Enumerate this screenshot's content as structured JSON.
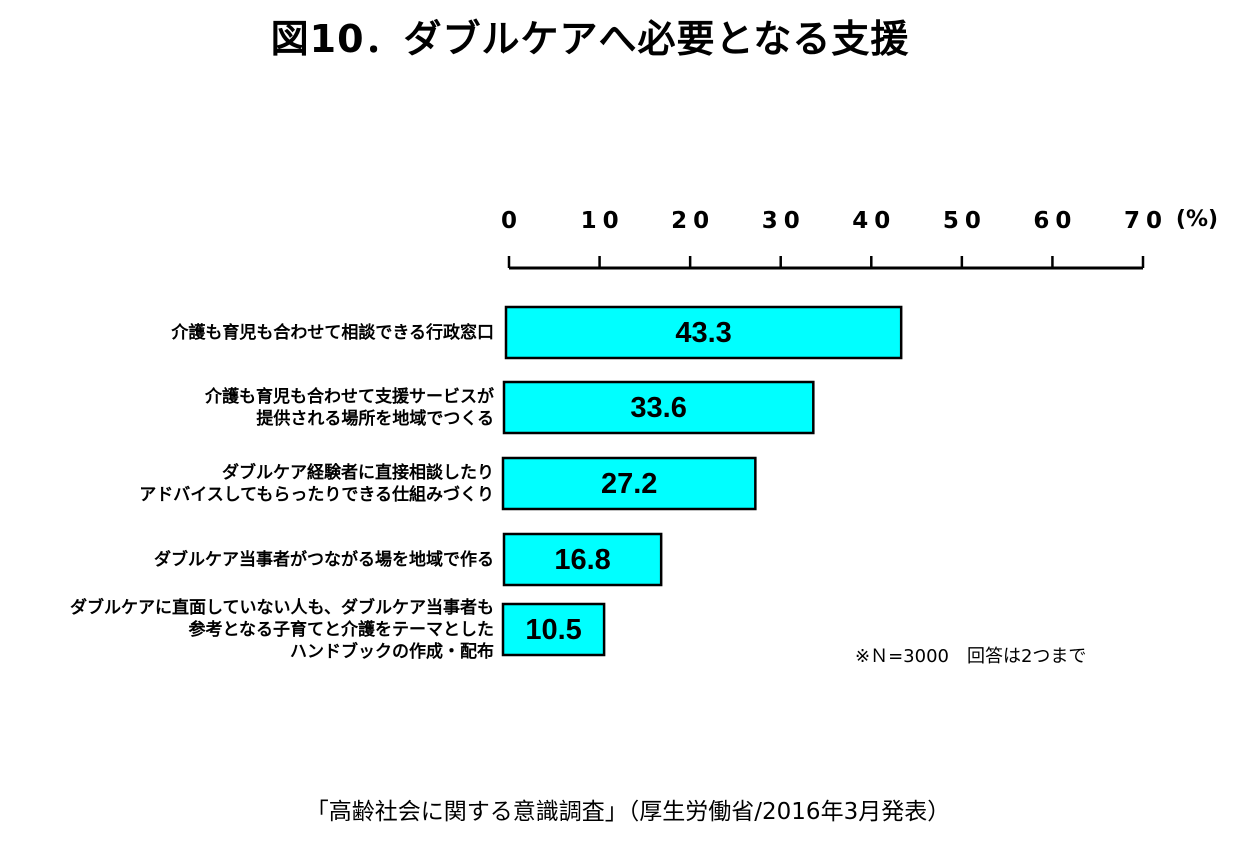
{
  "title": "図10．ダブルケアへ必要となる支援",
  "chart_data": {
    "type": "bar",
    "orientation": "horizontal",
    "xlim": [
      0,
      70
    ],
    "ticks": [
      "0",
      "10",
      "20",
      "30",
      "40",
      "50",
      "60",
      "70"
    ],
    "unit": "(%)",
    "categories": [
      "介護も育児も合わせて相談できる行政窓口",
      "介護も育児も合わせて支援サービスが\n提供される場所を地域でつくる",
      "ダブルケア経験者に直接相談したり\nアドバイスしてもらったりできる仕組みづくり",
      "ダブルケア当事者がつながる場を地域で作る",
      "ダブルケアに直面していない人も、ダブルケア当事者も\n参考となる子育てと介護をテーマとした\nハンドブックの作成・配布"
    ],
    "values": [
      43.3,
      33.6,
      27.2,
      16.8,
      10.5
    ],
    "value_labels": [
      "43.3",
      "33.6",
      "27.2",
      "16.8",
      "10.5"
    ],
    "bar_color": "#00FFFF",
    "legend": "none",
    "grid": false
  },
  "note": "※Ｎ=3000　回答は2つまで",
  "source": "「高齢社会に関する意識調査」（厚生労働省/2016年3月発表）"
}
